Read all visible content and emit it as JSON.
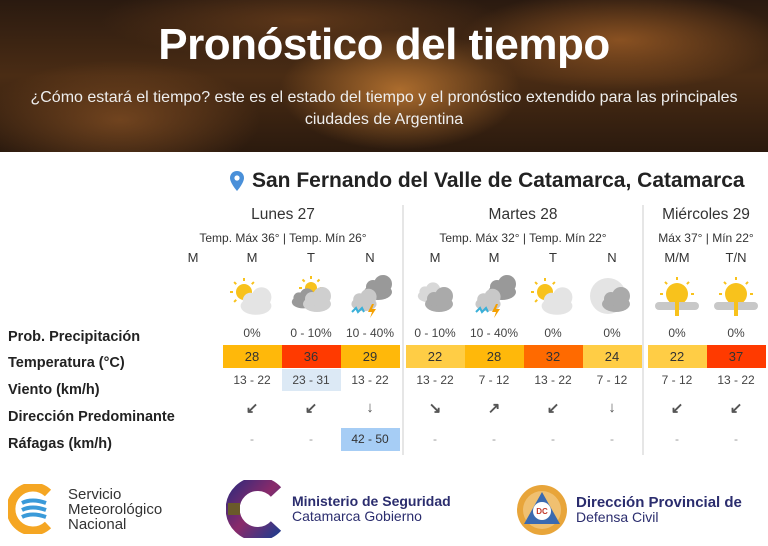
{
  "header": {
    "title": "Pronóstico del tiempo",
    "subtitle": "¿Cómo estará el tiempo? este es el estado del tiempo y el pronóstico extendido para las principales ciudades de Argentina"
  },
  "location": "San Fernando del Valle de Catamarca, Catamarca",
  "row_labels": {
    "prob": "Prob. Precipitación",
    "temp": "Temperatura (°C)",
    "wind": "Viento (km/h)",
    "dir": "Dirección Predominante",
    "gust": "Ráfagas (km/h)"
  },
  "days": [
    {
      "name": "Lunes 27",
      "temps": "Temp. Máx 36° | Temp. Mín 26°"
    },
    {
      "name": "Martes 28",
      "temps": "Temp. Máx 32° | Temp. Mín 22°"
    },
    {
      "name": "Miércoles 29",
      "temps": "Máx 37° | Mín 22°"
    }
  ],
  "periods": [
    {
      "label": "M",
      "icon": "",
      "prob": "",
      "temp": "",
      "wind": "",
      "dir": "",
      "gust": ""
    },
    {
      "label": "M",
      "icon": "sun-cloud",
      "prob": "0%",
      "temp": "28",
      "temp_color": "#ffb80a",
      "wind": "13 - 22",
      "dir": "↙",
      "gust": "-"
    },
    {
      "label": "T",
      "icon": "cloud-sun-small",
      "prob": "0 - 10%",
      "temp": "36",
      "temp_color": "#ff3a00",
      "wind": "23 - 31",
      "wind_color": "#dce9f5",
      "dir": "↙",
      "gust": "-"
    },
    {
      "label": "N",
      "icon": "storm",
      "prob": "10 - 40%",
      "temp": "29",
      "temp_color": "#ffb80a",
      "wind": "13 - 22",
      "dir": "↓",
      "gust": "42 - 50",
      "gust_color": "#a6cdf5"
    },
    {
      "label": "M",
      "icon": "night-cloud",
      "prob": "0 - 10%",
      "temp": "22",
      "temp_color": "#ffcd45",
      "wind": "13 - 22",
      "dir": "↘",
      "gust": "-"
    },
    {
      "label": "M",
      "icon": "storm",
      "prob": "10 - 40%",
      "temp": "28",
      "temp_color": "#ffb80a",
      "wind": "7 - 12",
      "dir": "↗",
      "gust": "-"
    },
    {
      "label": "T",
      "icon": "sun-cloud",
      "prob": "0%",
      "temp": "32",
      "temp_color": "#ff6a00",
      "wind": "13 - 22",
      "dir": "↙",
      "gust": "-"
    },
    {
      "label": "N",
      "icon": "moon-cloud",
      "prob": "0%",
      "temp": "24",
      "temp_color": "#ffcd45",
      "wind": "7 - 12",
      "dir": "↓",
      "gust": "-"
    },
    {
      "label": "M/M",
      "icon": "sun-fog",
      "prob": "0%",
      "temp": "22",
      "temp_color": "#ffcd45",
      "wind": "7 - 12",
      "dir": "↙",
      "gust": "-"
    },
    {
      "label": "T/N",
      "icon": "sun-fog",
      "prob": "0%",
      "temp": "37",
      "temp_color": "#ff3a00",
      "wind": "13 - 22",
      "dir": "↙",
      "gust": "-"
    }
  ],
  "logos": {
    "smn": [
      "Servicio",
      "Meteorológico",
      "Nacional"
    ],
    "ministerio": [
      "Ministerio de Seguridad",
      "Catamarca Gobierno"
    ],
    "defensa": [
      "Dirección Provincial de",
      "Defensa Civil"
    ],
    "defensa_badge": "DC"
  },
  "colors": {
    "accent": "#4a90d9",
    "navy": "#2b2d6e",
    "smn_orange": "#f5a623",
    "smn_blue": "#3a9ad9"
  }
}
